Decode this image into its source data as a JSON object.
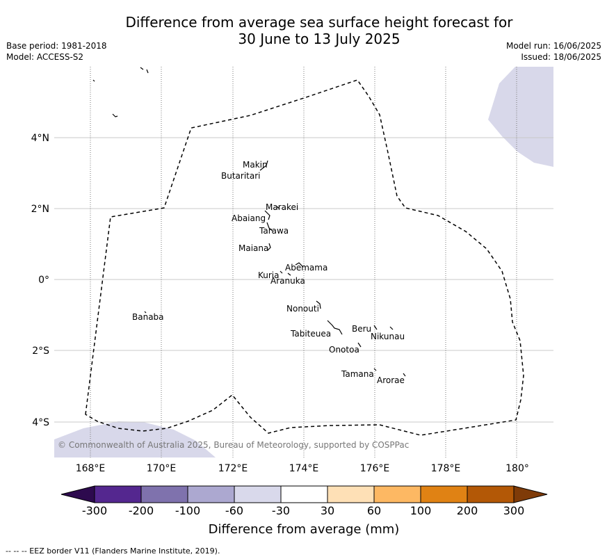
{
  "header": {
    "title_line1": "Difference from average sea surface height forecast for",
    "title_line2": "30 June to 13 July 2025",
    "base_period": "Base period: 1981-2018",
    "model": "Model: ACCESS-S2",
    "model_run": "Model run: 16/06/2025",
    "issued": "Issued: 18/06/2025"
  },
  "map": {
    "lon_ticks": [
      "168°E",
      "170°E",
      "172°E",
      "174°E",
      "176°E",
      "178°E",
      "180°"
    ],
    "lat_ticks": [
      "4°N",
      "2°N",
      "0°",
      "2°S",
      "4°S"
    ],
    "islands": [
      "Makin",
      "Butaritari",
      "Marakei",
      "Abaiang",
      "Tarawa",
      "Maiana",
      "Abemama",
      "Kuria",
      "Aranuka",
      "Nonouti",
      "Tabiteuea",
      "Beru",
      "Nikunau",
      "Onotoa",
      "Tamana",
      "Arorae",
      "Banaba"
    ],
    "copyright": "© Commonwealth of Australia 2025, Bureau of Meteorology, supported by COSPPac",
    "shaded_regions_category": "-60 to -30"
  },
  "legend": {
    "ticks": [
      "-300",
      "-200",
      "-100",
      "-60",
      "-30",
      "30",
      "60",
      "100",
      "200",
      "300"
    ],
    "colors": [
      "#2d0a4e",
      "#54278f",
      "#7f72ad",
      "#aca8d0",
      "#d9d9eb",
      "#ffffff",
      "#fee0b6",
      "#fdb863",
      "#e08214",
      "#b35806",
      "#7f3b08"
    ],
    "label": "Difference from average (mm)"
  },
  "footnote": "--  --  -- EEZ border V11 (Flanders Marine Institute, 2019)."
}
